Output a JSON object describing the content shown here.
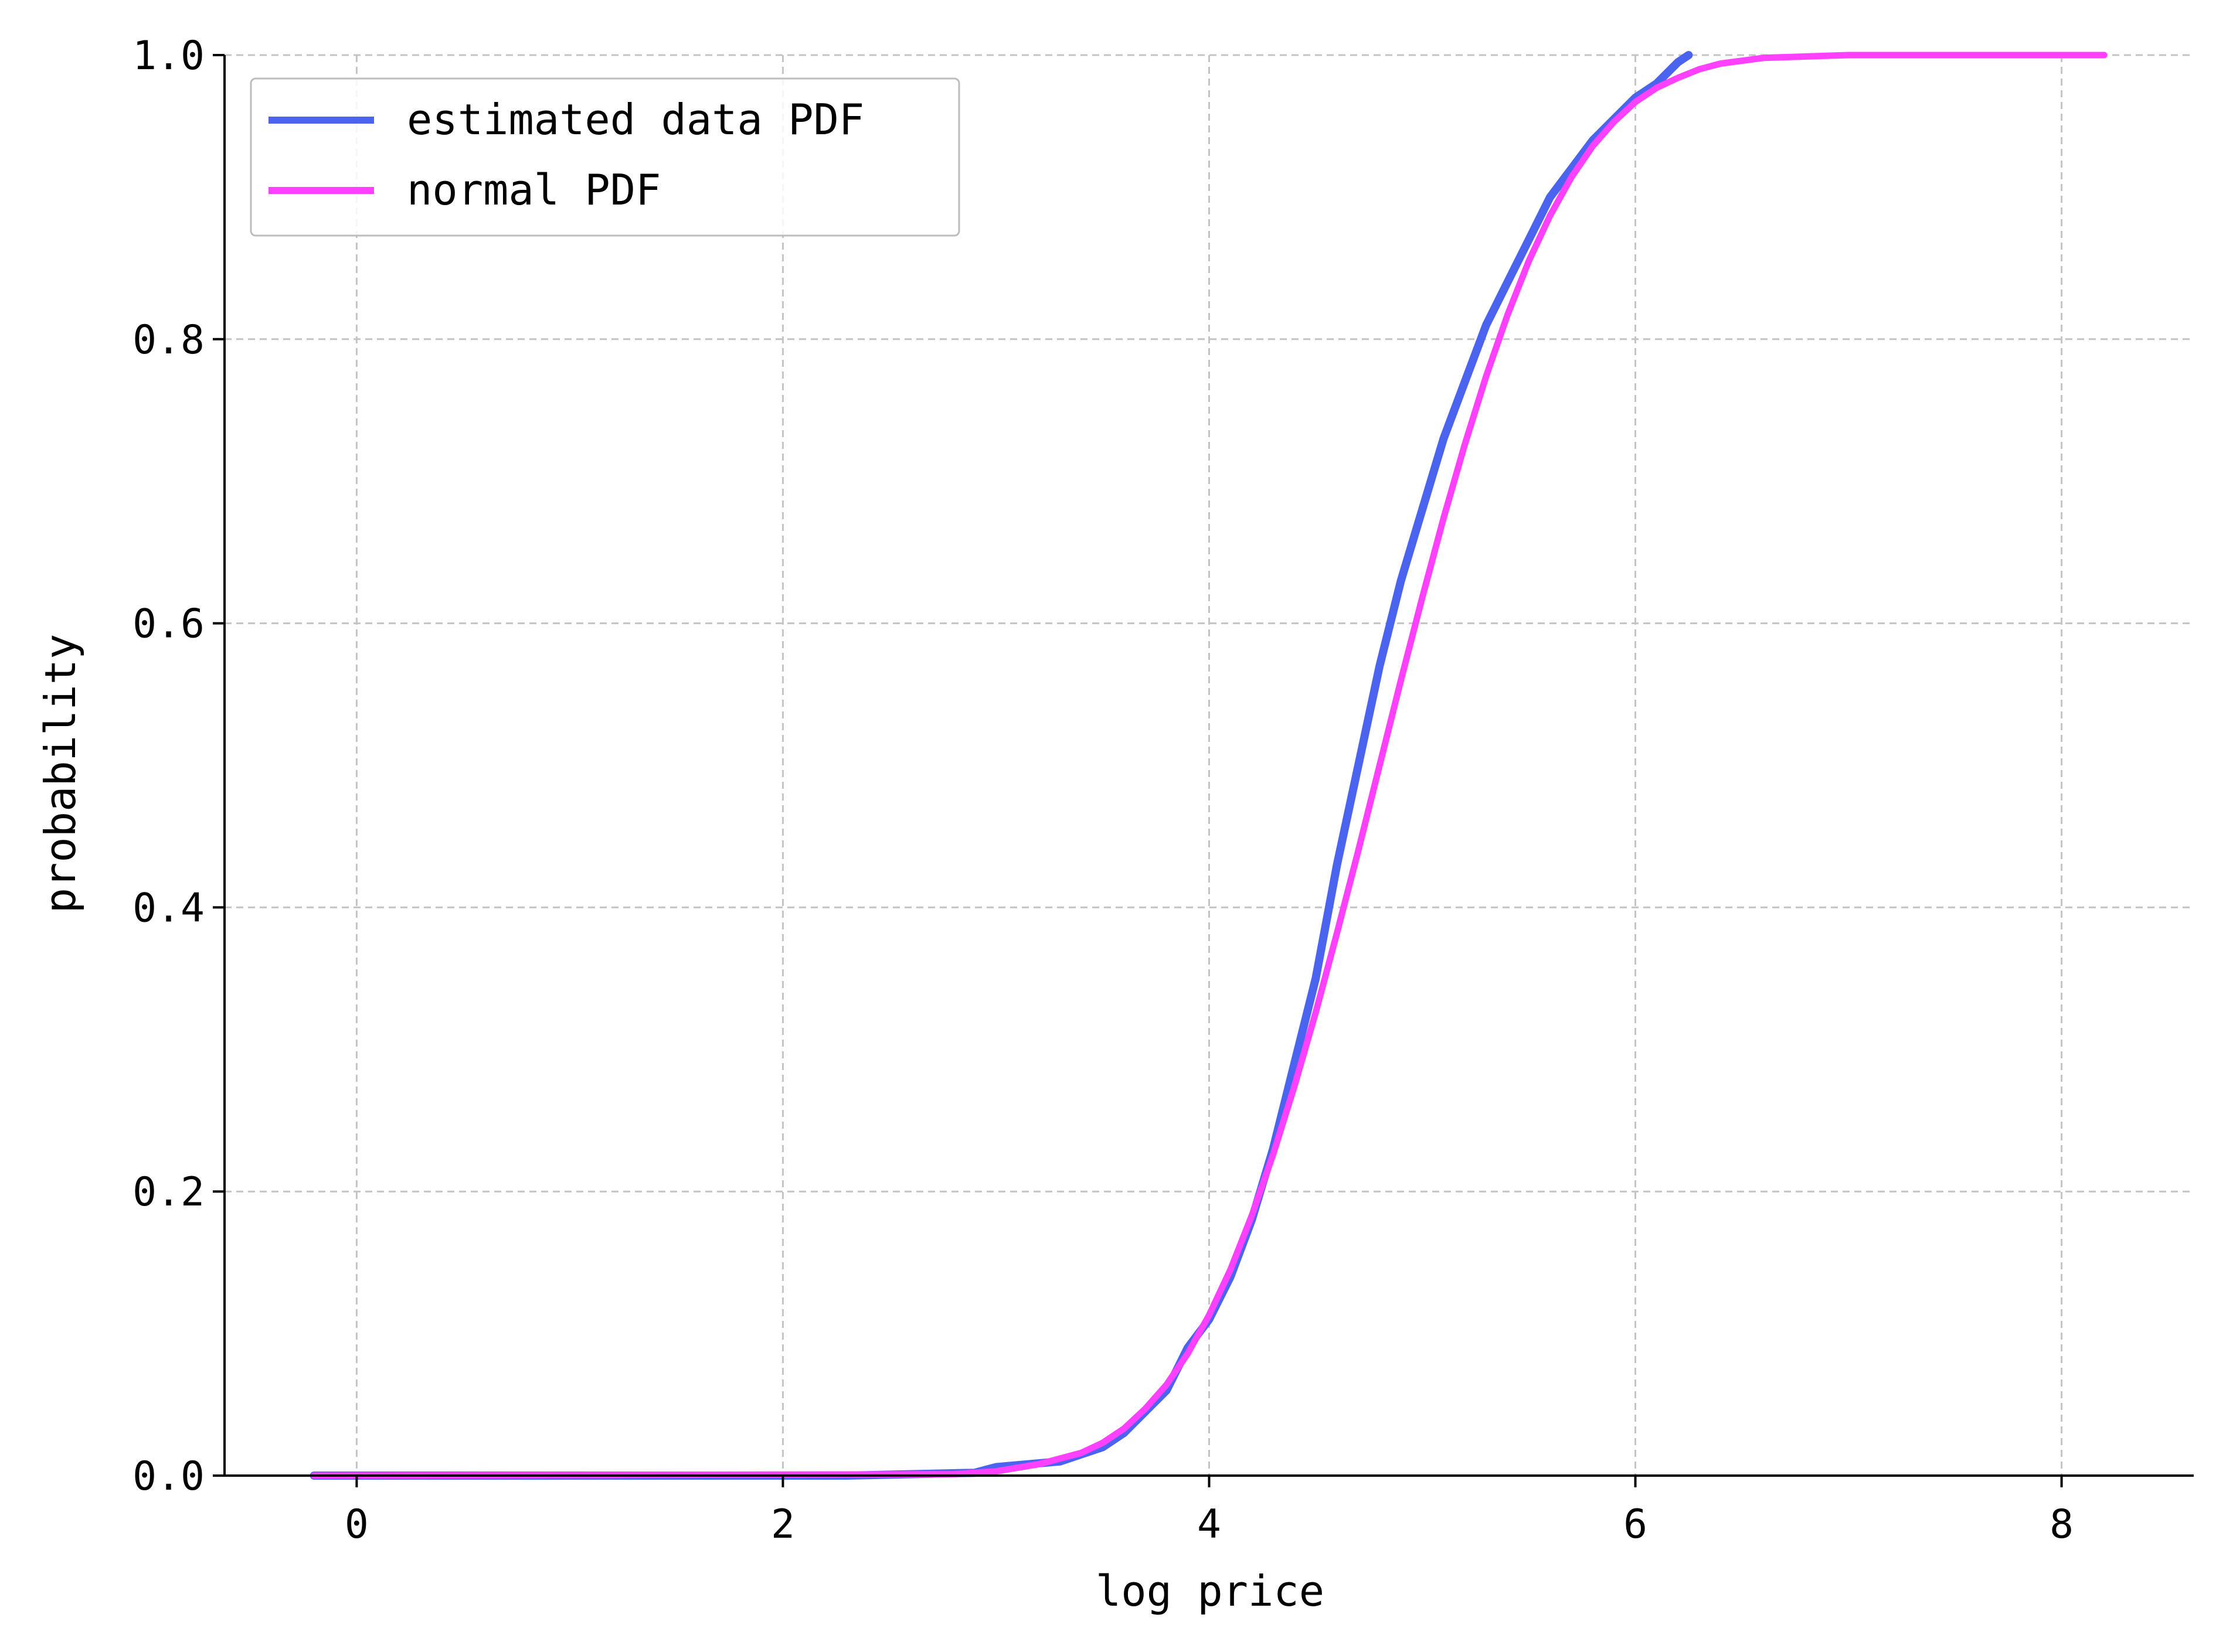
{
  "chart_data": {
    "type": "line",
    "title": "",
    "xlabel": "log price",
    "ylabel": "probability",
    "xlim": [
      -0.62,
      8.62
    ],
    "ylim": [
      0.0,
      1.0
    ],
    "xticks": [
      0,
      2,
      4,
      6,
      8
    ],
    "xtick_labels": [
      "0",
      "2",
      "4",
      "6",
      "8"
    ],
    "yticks": [
      0.0,
      0.2,
      0.4,
      0.6,
      0.8,
      1.0
    ],
    "ytick_labels": [
      "0.0",
      "0.2",
      "0.4",
      "0.6",
      "0.8",
      "1.0"
    ],
    "grid": true,
    "legend_position": "top-left",
    "series": [
      {
        "name": "estimated data PDF",
        "color": "#4a64f0",
        "x": [
          -0.2,
          2.3,
          2.9,
          3.0,
          3.3,
          3.5,
          3.6,
          3.7,
          3.8,
          3.85,
          3.9,
          4.0,
          4.1,
          4.2,
          4.3,
          4.4,
          4.5,
          4.6,
          4.7,
          4.8,
          4.9,
          5.0,
          5.1,
          5.2,
          5.3,
          5.4,
          5.5,
          5.6,
          5.7,
          5.8,
          5.9,
          6.0,
          6.1,
          6.2,
          6.25
        ],
        "y": [
          0.0,
          0.0,
          0.002,
          0.006,
          0.01,
          0.02,
          0.03,
          0.045,
          0.06,
          0.075,
          0.09,
          0.11,
          0.14,
          0.18,
          0.23,
          0.29,
          0.35,
          0.43,
          0.5,
          0.57,
          0.63,
          0.68,
          0.73,
          0.77,
          0.81,
          0.84,
          0.87,
          0.9,
          0.92,
          0.94,
          0.955,
          0.97,
          0.98,
          0.995,
          1.0
        ]
      },
      {
        "name": "normal PDF",
        "color": "#ff40ff",
        "x": [
          -0.2,
          2.8,
          3.0,
          3.2,
          3.4,
          3.5,
          3.6,
          3.7,
          3.8,
          3.9,
          4.0,
          4.1,
          4.2,
          4.3,
          4.4,
          4.5,
          4.6,
          4.7,
          4.8,
          4.9,
          5.0,
          5.1,
          5.2,
          5.3,
          5.4,
          5.5,
          5.6,
          5.7,
          5.8,
          5.9,
          6.0,
          6.1,
          6.2,
          6.3,
          6.4,
          6.5,
          6.6,
          6.8,
          7.0,
          8.2
        ],
        "y": [
          0.0,
          0.001,
          0.003,
          0.008,
          0.016,
          0.023,
          0.033,
          0.047,
          0.064,
          0.086,
          0.113,
          0.145,
          0.183,
          0.226,
          0.274,
          0.326,
          0.382,
          0.44,
          0.5,
          0.56,
          0.618,
          0.674,
          0.726,
          0.774,
          0.817,
          0.855,
          0.887,
          0.914,
          0.936,
          0.953,
          0.967,
          0.977,
          0.984,
          0.99,
          0.994,
          0.996,
          0.998,
          0.999,
          1.0,
          1.0
        ]
      }
    ]
  }
}
